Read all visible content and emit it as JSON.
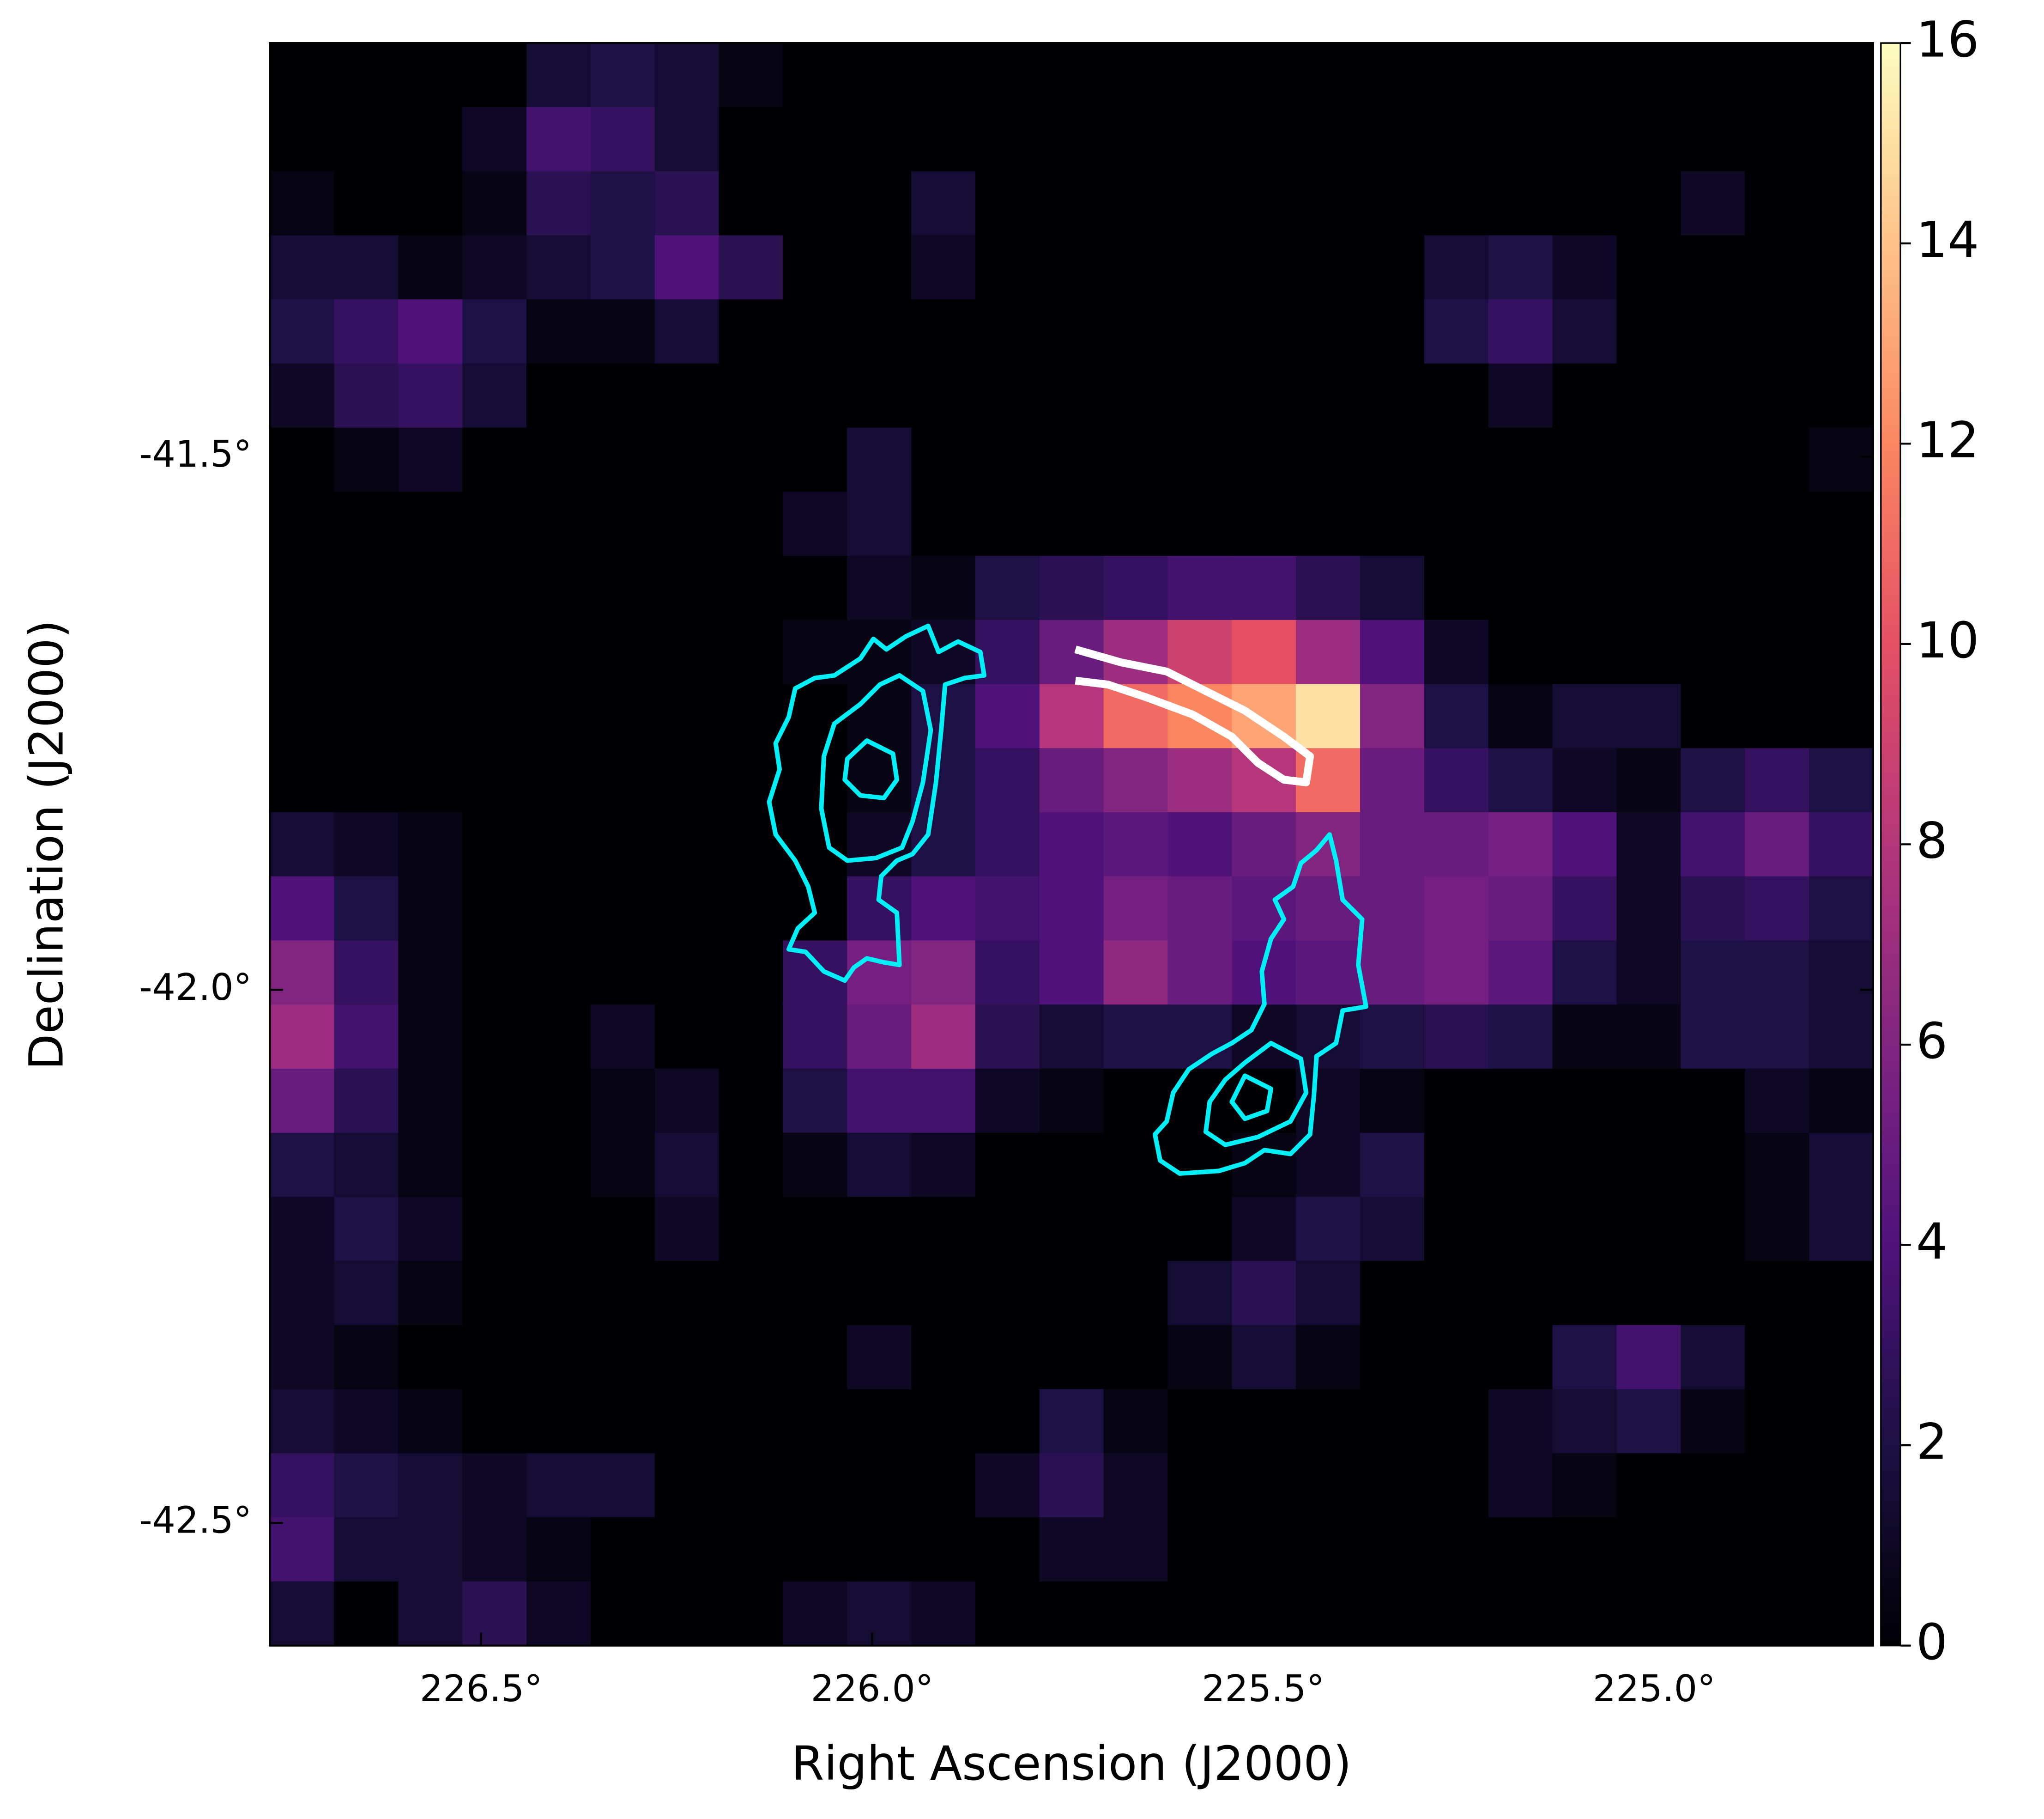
{
  "chart_data": {
    "type": "heatmap",
    "colormap": "magma",
    "xlabel": "Right Ascension (J2000)",
    "ylabel": "Declination (J2000)",
    "xlim": [
      226.77,
      224.72
    ],
    "ylim": [
      -42.615,
      -41.112
    ],
    "xticks": [
      {
        "value": 226.5,
        "label": "226.5°"
      },
      {
        "value": 226.0,
        "label": "226.0°"
      },
      {
        "value": 225.5,
        "label": "225.5°"
      },
      {
        "value": 225.0,
        "label": "225.0°"
      }
    ],
    "yticks": [
      {
        "value": -41.5,
        "label": "-41.5°"
      },
      {
        "value": -42.0,
        "label": "-42.0°"
      },
      {
        "value": -42.5,
        "label": "-42.5°"
      }
    ],
    "clim": [
      0,
      16
    ],
    "colorbar_ticks": [
      0,
      2,
      4,
      6,
      8,
      10,
      12,
      14,
      16
    ],
    "z": [
      [
        0,
        0,
        0,
        0,
        1.5,
        2,
        1.5,
        0.5,
        0,
        0,
        0,
        0,
        0,
        0,
        0,
        0,
        0,
        0,
        0,
        0,
        0,
        0,
        0,
        0,
        0
      ],
      [
        0,
        0,
        0,
        1,
        3.5,
        3,
        1.5,
        0,
        0,
        0,
        0,
        0,
        0,
        0,
        0,
        0,
        0,
        0,
        0,
        0,
        0,
        0,
        0,
        0,
        0
      ],
      [
        0.5,
        0,
        0,
        0.5,
        2.5,
        2,
        2.5,
        0,
        0,
        0,
        1.5,
        0,
        0,
        0,
        0,
        0,
        0,
        0,
        0,
        0,
        0,
        0,
        1,
        0,
        0
      ],
      [
        1.5,
        1.5,
        0.5,
        1,
        1.5,
        2,
        4,
        2.5,
        0,
        0,
        1,
        0,
        0,
        0,
        0,
        0,
        0,
        0,
        1.5,
        2,
        1,
        0,
        0,
        0,
        0
      ],
      [
        2,
        3,
        4,
        2,
        0.5,
        0.5,
        1.5,
        0,
        0,
        0,
        0,
        0,
        0,
        0,
        0,
        0,
        0,
        0,
        2,
        3,
        1.5,
        0,
        0,
        0,
        0
      ],
      [
        1,
        2.5,
        3,
        1.5,
        0,
        0,
        0,
        0,
        0,
        0,
        0,
        0,
        0,
        0,
        0,
        0,
        0,
        0,
        0,
        1,
        0,
        0,
        0,
        0,
        0
      ],
      [
        0,
        0.5,
        1,
        0,
        0,
        0,
        0,
        0,
        0,
        1.5,
        0,
        0,
        0,
        0,
        0,
        0,
        0,
        0,
        0,
        0,
        0,
        0,
        0,
        0,
        0.5
      ],
      [
        0,
        0,
        0,
        0,
        0,
        0,
        0,
        0,
        1,
        1.5,
        0,
        0,
        0,
        0,
        0,
        0,
        0,
        0,
        0,
        0,
        0,
        0,
        0,
        0,
        0
      ],
      [
        0,
        0,
        0,
        0,
        0,
        0,
        0,
        0,
        0,
        1,
        0.5,
        2,
        2.5,
        3,
        3.5,
        3.5,
        2.5,
        1.5,
        0,
        0,
        0,
        0,
        0,
        0,
        0
      ],
      [
        0,
        0,
        0,
        0,
        0,
        0,
        0,
        0,
        0.5,
        0.5,
        1,
        3,
        5,
        7,
        9,
        10,
        7,
        4,
        1,
        0,
        0,
        0,
        0,
        0,
        0
      ],
      [
        0,
        0,
        0,
        0,
        0,
        0,
        0,
        0,
        0,
        0.5,
        2,
        4,
        8,
        11,
        12,
        13,
        15,
        6,
        2,
        0.5,
        1.5,
        1.5,
        0,
        0,
        0
      ],
      [
        0,
        0,
        0,
        0,
        0,
        0,
        0,
        0,
        0,
        0.5,
        2,
        3,
        5,
        6,
        7,
        8,
        11,
        5,
        3,
        2,
        1,
        0.5,
        2,
        3,
        2
      ],
      [
        1.5,
        1,
        0.5,
        0,
        0,
        0,
        0,
        0,
        0,
        1,
        2,
        3,
        4,
        4.5,
        4,
        5,
        6,
        5,
        5,
        5.5,
        4,
        1,
        3.5,
        5,
        3
      ],
      [
        4,
        2,
        0.5,
        0,
        0,
        0,
        0,
        0,
        0,
        3,
        4,
        3.5,
        4,
        5.5,
        5,
        4.5,
        5,
        5,
        5.5,
        5,
        3,
        1,
        2.5,
        3,
        2
      ],
      [
        6,
        3,
        0.5,
        0,
        0,
        0,
        0,
        0,
        3,
        5.5,
        6,
        3,
        4,
        6.5,
        5,
        4,
        4.5,
        5,
        5.5,
        4.5,
        2,
        1,
        2,
        2,
        1.5
      ],
      [
        7,
        3.5,
        0.5,
        0,
        0,
        1,
        0,
        0,
        3,
        5,
        7,
        2.5,
        1.5,
        2,
        2,
        1,
        1.5,
        2,
        2.5,
        2,
        0.5,
        0.5,
        2,
        2,
        1.5
      ],
      [
        5,
        2.5,
        0.5,
        0,
        0,
        0.5,
        1,
        0,
        2,
        3.5,
        3.5,
        1,
        0.5,
        0,
        0,
        0,
        1,
        0.5,
        0,
        0,
        0,
        0,
        0,
        1,
        0.5
      ],
      [
        2,
        1.5,
        0.5,
        0,
        0,
        0.5,
        1.5,
        0,
        0.5,
        1.5,
        1,
        0,
        0,
        0,
        0,
        0.5,
        1,
        2,
        0,
        0,
        0,
        0,
        0,
        0.5,
        1.5
      ],
      [
        1,
        2,
        1,
        0,
        0,
        0,
        1,
        0,
        0,
        0,
        0,
        0,
        0,
        0,
        0,
        1,
        2,
        1.5,
        0,
        0,
        0,
        0,
        0,
        0.5,
        1.5
      ],
      [
        1,
        1.5,
        0.5,
        0,
        0,
        0,
        0,
        0,
        0,
        0,
        0,
        0,
        0,
        0,
        1.5,
        2.5,
        1.5,
        0,
        0,
        0,
        0,
        0,
        0,
        0,
        0
      ],
      [
        1,
        0.5,
        0,
        0,
        0,
        0,
        0,
        0,
        0,
        1,
        0,
        0,
        0,
        0,
        0.5,
        1.5,
        0.5,
        0,
        0,
        0,
        2,
        3.5,
        1.5,
        0,
        0
      ],
      [
        1.5,
        1,
        0.5,
        0,
        0,
        0,
        0,
        0,
        0,
        0,
        0,
        0,
        2,
        0.5,
        0,
        0,
        0,
        0,
        0,
        1,
        1.5,
        2,
        0.5,
        0,
        0
      ],
      [
        3,
        2,
        1.5,
        1,
        1.5,
        1.5,
        0,
        0,
        0,
        0,
        0,
        1,
        2.5,
        1,
        0,
        0,
        0,
        0,
        0,
        1,
        0.5,
        0,
        0,
        0,
        0
      ],
      [
        3.5,
        1.5,
        1.5,
        1,
        0.5,
        0,
        0,
        0,
        0,
        0,
        0,
        0,
        1,
        1,
        0,
        0,
        0,
        0,
        0,
        0,
        0,
        0,
        0,
        0,
        0
      ],
      [
        1.5,
        0,
        1.5,
        2.5,
        1,
        0,
        0,
        0,
        1,
        1.5,
        1,
        0,
        0,
        0,
        0,
        0,
        0,
        0,
        0,
        0,
        0,
        0,
        0,
        0,
        0
      ]
    ]
  }
}
